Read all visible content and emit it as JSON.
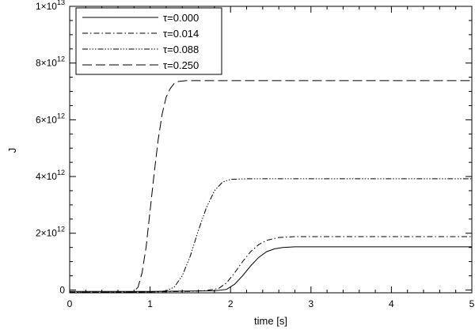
{
  "chart_data": {
    "type": "line",
    "title": "",
    "xlabel": "time [s]",
    "ylabel": "J",
    "xlim": [
      0,
      5
    ],
    "ylim": [
      -100000000000.0,
      10000000000000.0
    ],
    "x_ticks": [
      {
        "value": 0,
        "label": "0"
      },
      {
        "value": 1,
        "label": "1"
      },
      {
        "value": 2,
        "label": "2"
      },
      {
        "value": 3,
        "label": "3"
      },
      {
        "value": 4,
        "label": "4"
      },
      {
        "value": 5,
        "label": "5"
      }
    ],
    "y_ticks": [
      {
        "value": 0,
        "label": "0",
        "exp": ""
      },
      {
        "value": 2000000000000.0,
        "label": "2×10",
        "exp": "12"
      },
      {
        "value": 4000000000000.0,
        "label": "4×10",
        "exp": "12"
      },
      {
        "value": 6000000000000.0,
        "label": "6×10",
        "exp": "12"
      },
      {
        "value": 8000000000000.0,
        "label": "8×10",
        "exp": "12"
      },
      {
        "value": 10000000000000.0,
        "label": "1×10",
        "exp": "13"
      }
    ],
    "grid": false,
    "legend_position": "top-left",
    "series": [
      {
        "name": "τ=0.000",
        "dash": "solid",
        "x": [
          0,
          0.5,
          1.0,
          1.5,
          1.8,
          1.95,
          2.05,
          2.15,
          2.25,
          2.35,
          2.45,
          2.55,
          2.65,
          2.8,
          3.0,
          4.0,
          5.0
        ],
        "y": [
          -50000000000.0,
          -50000000000.0,
          -50000000000.0,
          -40000000000.0,
          -30000000000.0,
          20000000000.0,
          200000000000.0,
          500000000000.0,
          850000000000.0,
          1150000000000.0,
          1350000000000.0,
          1450000000000.0,
          1500000000000.0,
          1520000000000.0,
          1520000000000.0,
          1520000000000.0,
          1520000000000.0
        ]
      },
      {
        "name": "τ=0.014",
        "dash": "dashdot",
        "x": [
          0,
          0.5,
          1.0,
          1.5,
          1.7,
          1.85,
          1.95,
          2.05,
          2.15,
          2.25,
          2.35,
          2.45,
          2.6,
          2.8,
          3.0,
          4.0,
          5.0
        ],
        "y": [
          -80000000000.0,
          -80000000000.0,
          -70000000000.0,
          -50000000000.0,
          -20000000000.0,
          50000000000.0,
          250000000000.0,
          600000000000.0,
          1000000000000.0,
          1350000000000.0,
          1600000000000.0,
          1750000000000.0,
          1850000000000.0,
          1880000000000.0,
          1880000000000.0,
          1880000000000.0,
          1880000000000.0
        ]
      },
      {
        "name": "τ=0.088",
        "dash": "dashdotdotdot",
        "x": [
          0,
          0.5,
          1.0,
          1.1,
          1.2,
          1.3,
          1.4,
          1.5,
          1.6,
          1.7,
          1.8,
          1.9,
          2.0,
          2.2,
          2.5,
          3.0,
          4.0,
          5.0
        ],
        "y": [
          -80000000000.0,
          -80000000000.0,
          -70000000000.0,
          -60000000000.0,
          -30000000000.0,
          100000000000.0,
          500000000000.0,
          1200000000000.0,
          2100000000000.0,
          2900000000000.0,
          3500000000000.0,
          3800000000000.0,
          3900000000000.0,
          3920000000000.0,
          3920000000000.0,
          3920000000000.0,
          3920000000000.0,
          3920000000000.0
        ]
      },
      {
        "name": "τ=0.250",
        "dash": "dashed",
        "x": [
          0,
          0.5,
          0.7,
          0.8,
          0.85,
          0.9,
          0.95,
          1.0,
          1.05,
          1.1,
          1.15,
          1.2,
          1.25,
          1.3,
          1.35,
          1.45,
          1.6,
          2.0,
          3.0,
          4.0,
          5.0
        ],
        "y": [
          -100000000000.0,
          -100000000000.0,
          -90000000000.0,
          -50000000000.0,
          100000000000.0,
          600000000000.0,
          1500000000000.0,
          2800000000000.0,
          4100000000000.0,
          5300000000000.0,
          6200000000000.0,
          6800000000000.0,
          7100000000000.0,
          7280000000000.0,
          7350000000000.0,
          7380000000000.0,
          7380000000000.0,
          7380000000000.0,
          7380000000000.0,
          7380000000000.0,
          7380000000000.0
        ]
      }
    ]
  }
}
